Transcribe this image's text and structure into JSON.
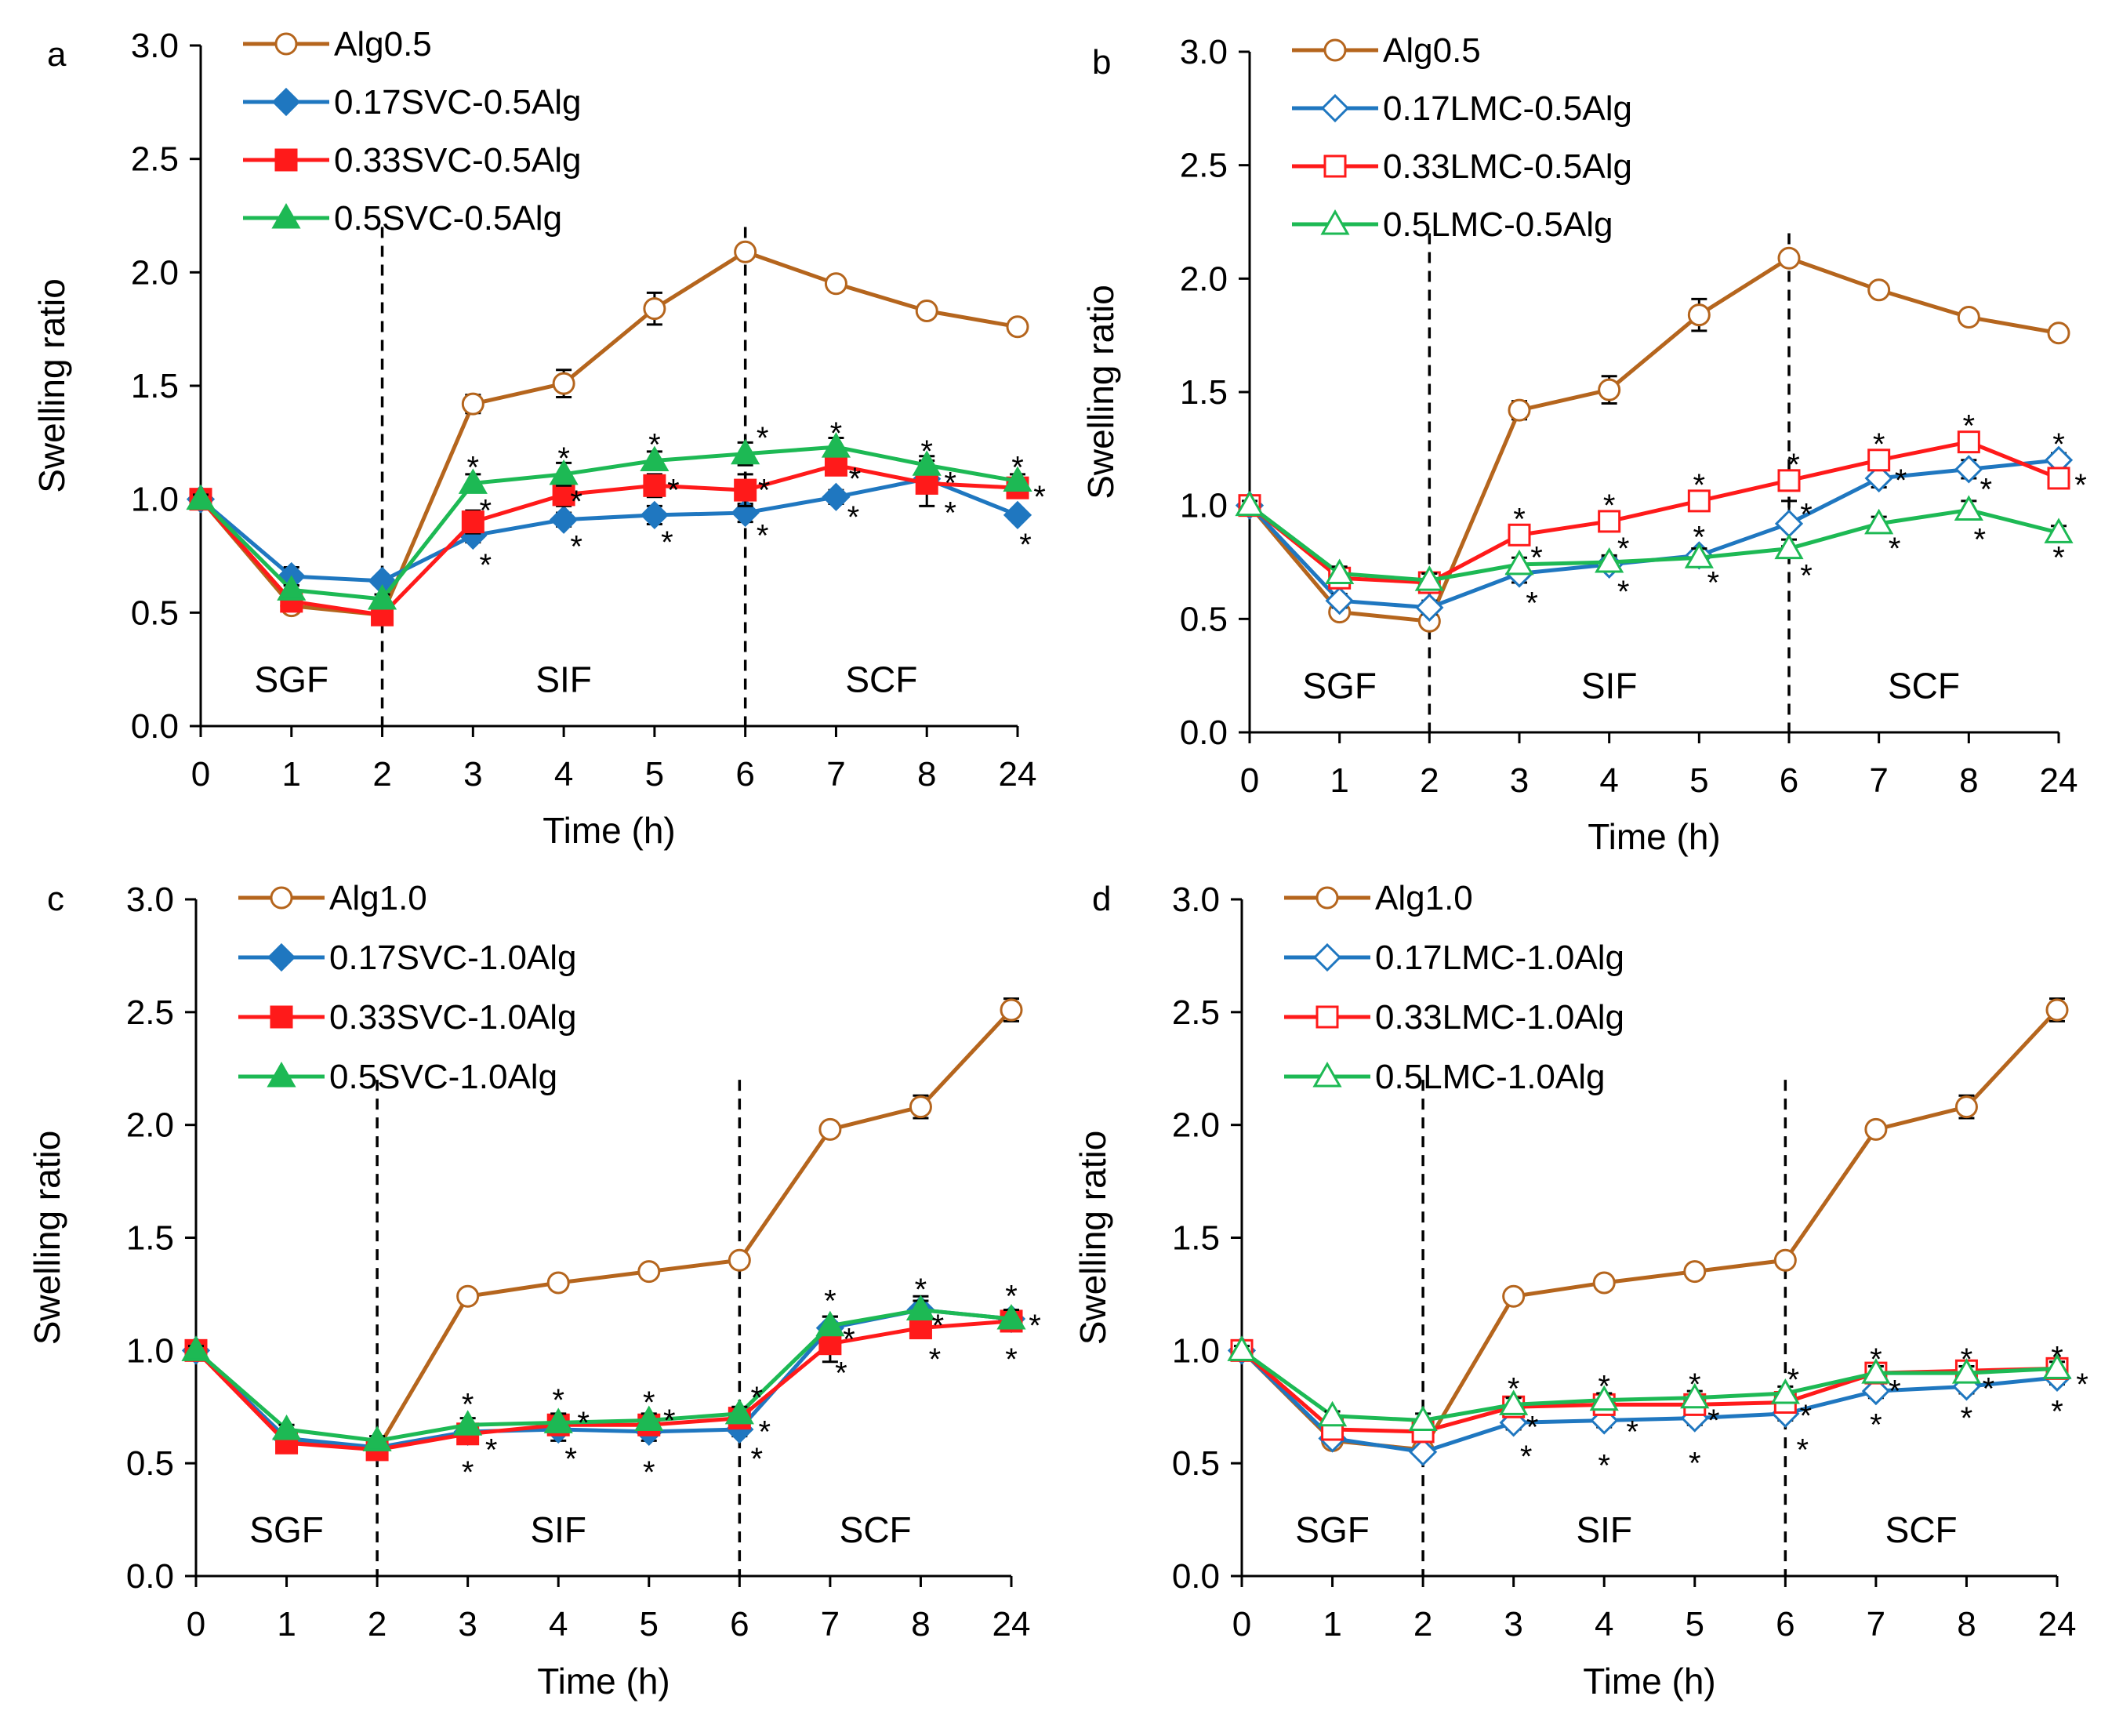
{
  "chart_data": [
    {
      "panel_label": "a",
      "type": "line",
      "title": "",
      "xlabel": "Time (h)",
      "ylabel": "Swelling ratio",
      "categories": [
        "0",
        "1",
        "2",
        "3",
        "4",
        "5",
        "6",
        "7",
        "8",
        "24"
      ],
      "ylim": [
        0,
        3
      ],
      "yticks": [
        "0.0",
        "0.5",
        "1.0",
        "1.5",
        "2.0",
        "2.5",
        "3.0"
      ],
      "phase_labels": [
        "SGF",
        "SIF",
        "SCF"
      ],
      "phase_dividers": [
        2,
        6
      ],
      "series": [
        {
          "name": "Alg0.5",
          "color": "#B5651D",
          "marker": "circle",
          "filled": false,
          "values": [
            1.0,
            0.53,
            0.49,
            1.42,
            1.51,
            1.84,
            2.09,
            1.95,
            1.83,
            1.76
          ],
          "errors": [
            0.02,
            0.02,
            0.02,
            0.04,
            0.06,
            0.07,
            0.02,
            0.02,
            0.02,
            0.01
          ]
        },
        {
          "name": "0.17SVC-0.5Alg",
          "color": "#1F77C0",
          "marker": "diamond",
          "filled": true,
          "values": [
            1.0,
            0.66,
            0.64,
            0.84,
            0.91,
            0.93,
            0.94,
            1.01,
            1.09,
            0.93
          ],
          "errors": [
            0.02,
            0.04,
            0.02,
            0.03,
            0.03,
            0.04,
            0.04,
            0.03,
            0.04,
            0.02
          ]
        },
        {
          "name": "0.33SVC-0.5Alg",
          "color": "#FF1A1A",
          "marker": "square",
          "filled": true,
          "values": [
            1.0,
            0.55,
            0.49,
            0.9,
            1.02,
            1.06,
            1.04,
            1.15,
            1.07,
            1.05
          ],
          "errors": [
            0.02,
            0.02,
            0.02,
            0.05,
            0.05,
            0.05,
            0.07,
            0.03,
            0.1,
            0.03
          ]
        },
        {
          "name": "0.5SVC-0.5Alg",
          "color": "#1DB954",
          "marker": "triangle",
          "filled": true,
          "values": [
            1.0,
            0.6,
            0.56,
            1.07,
            1.11,
            1.17,
            1.2,
            1.23,
            1.15,
            1.08
          ],
          "errors": [
            0.02,
            0.02,
            0.02,
            0.04,
            0.05,
            0.04,
            0.05,
            0.04,
            0.04,
            0.03
          ]
        }
      ],
      "asterisks": [
        {
          "xi": 3,
          "v": 1.17,
          "dx": 0
        },
        {
          "xi": 3,
          "v": 0.98,
          "dx": 16
        },
        {
          "xi": 3,
          "v": 0.74,
          "dx": 16
        },
        {
          "xi": 4,
          "v": 1.21,
          "dx": 0
        },
        {
          "xi": 4,
          "v": 1.02,
          "dx": 16
        },
        {
          "xi": 4,
          "v": 0.82,
          "dx": 16
        },
        {
          "xi": 5,
          "v": 1.27,
          "dx": 0
        },
        {
          "xi": 5,
          "v": 1.07,
          "dx": 24
        },
        {
          "xi": 5,
          "v": 0.84,
          "dx": 16
        },
        {
          "xi": 6,
          "v": 1.3,
          "dx": 22
        },
        {
          "xi": 6,
          "v": 1.07,
          "dx": 24
        },
        {
          "xi": 6,
          "v": 0.87,
          "dx": 22
        },
        {
          "xi": 7,
          "v": 1.32,
          "dx": 0
        },
        {
          "xi": 7,
          "v": 1.12,
          "dx": 24
        },
        {
          "xi": 7,
          "v": 0.95,
          "dx": 22
        },
        {
          "xi": 8,
          "v": 1.24,
          "dx": 0
        },
        {
          "xi": 8,
          "v": 1.1,
          "dx": 30
        },
        {
          "xi": 8,
          "v": 0.97,
          "dx": 30
        },
        {
          "xi": 9,
          "v": 1.17,
          "dx": 0
        },
        {
          "xi": 9,
          "v": 1.04,
          "dx": 28
        },
        {
          "xi": 9,
          "v": 0.83,
          "dx": 10
        }
      ]
    },
    {
      "panel_label": "b",
      "type": "line",
      "title": "",
      "xlabel": "Time (h)",
      "ylabel": "Swelling ratio",
      "categories": [
        "0",
        "1",
        "2",
        "3",
        "4",
        "5",
        "6",
        "7",
        "8",
        "24"
      ],
      "ylim": [
        0,
        3
      ],
      "yticks": [
        "0.0",
        "0.5",
        "1.0",
        "1.5",
        "2.0",
        "2.5",
        "3.0"
      ],
      "phase_labels": [
        "SGF",
        "SIF",
        "SCF"
      ],
      "phase_dividers": [
        2,
        6
      ],
      "series": [
        {
          "name": "Alg0.5",
          "color": "#B5651D",
          "marker": "circle",
          "filled": false,
          "values": [
            1.0,
            0.53,
            0.49,
            1.42,
            1.51,
            1.84,
            2.09,
            1.95,
            1.83,
            1.76
          ],
          "errors": [
            0.02,
            0.02,
            0.02,
            0.04,
            0.06,
            0.07,
            0.02,
            0.02,
            0.02,
            0.01
          ]
        },
        {
          "name": "0.17LMC-0.5Alg",
          "color": "#1F77C0",
          "marker": "diamond",
          "filled": false,
          "values": [
            1.0,
            0.58,
            0.55,
            0.7,
            0.74,
            0.78,
            0.92,
            1.12,
            1.16,
            1.2
          ],
          "errors": [
            0.02,
            0.03,
            0.03,
            0.04,
            0.03,
            0.03,
            0.1,
            0.04,
            0.04,
            0.03
          ]
        },
        {
          "name": "0.33LMC-0.5Alg",
          "color": "#FF1A1A",
          "marker": "square",
          "filled": false,
          "values": [
            1.0,
            0.68,
            0.66,
            0.87,
            0.93,
            1.02,
            1.11,
            1.2,
            1.28,
            1.12
          ],
          "errors": [
            0.02,
            0.03,
            0.03,
            0.03,
            0.03,
            0.03,
            0.03,
            0.04,
            0.04,
            0.03
          ]
        },
        {
          "name": "0.5LMC-0.5Alg",
          "color": "#1DB954",
          "marker": "triangle",
          "filled": false,
          "values": [
            1.0,
            0.7,
            0.67,
            0.74,
            0.75,
            0.77,
            0.81,
            0.92,
            0.98,
            0.88
          ],
          "errors": [
            0.02,
            0.03,
            0.03,
            0.03,
            0.03,
            0.04,
            0.04,
            0.03,
            0.04,
            0.03
          ]
        }
      ],
      "asterisks": [
        {
          "xi": 3,
          "v": 0.97,
          "dx": 0
        },
        {
          "xi": 3,
          "v": 0.8,
          "dx": 22
        },
        {
          "xi": 3,
          "v": 0.6,
          "dx": 16
        },
        {
          "xi": 4,
          "v": 1.03,
          "dx": 0
        },
        {
          "xi": 4,
          "v": 0.84,
          "dx": 18
        },
        {
          "xi": 4,
          "v": 0.65,
          "dx": 18
        },
        {
          "xi": 5,
          "v": 1.12,
          "dx": 0
        },
        {
          "xi": 5,
          "v": 0.89,
          "dx": 0
        },
        {
          "xi": 5,
          "v": 0.69,
          "dx": 18
        },
        {
          "xi": 6,
          "v": 1.21,
          "dx": 6
        },
        {
          "xi": 6,
          "v": 0.99,
          "dx": 22
        },
        {
          "xi": 6,
          "v": 0.72,
          "dx": 22
        },
        {
          "xi": 7,
          "v": 1.3,
          "dx": 0
        },
        {
          "xi": 7,
          "v": 1.14,
          "dx": 28
        },
        {
          "xi": 7,
          "v": 0.84,
          "dx": 20
        },
        {
          "xi": 8,
          "v": 1.38,
          "dx": 0
        },
        {
          "xi": 8,
          "v": 1.1,
          "dx": 22
        },
        {
          "xi": 8,
          "v": 0.88,
          "dx": 14
        },
        {
          "xi": 9,
          "v": 1.3,
          "dx": 0
        },
        {
          "xi": 9,
          "v": 1.12,
          "dx": 28
        },
        {
          "xi": 9,
          "v": 0.8,
          "dx": 0
        }
      ]
    },
    {
      "panel_label": "c",
      "type": "line",
      "title": "",
      "xlabel": "Time (h)",
      "ylabel": "Swelling ratio",
      "categories": [
        "0",
        "1",
        "2",
        "3",
        "4",
        "5",
        "6",
        "7",
        "8",
        "24"
      ],
      "ylim": [
        0,
        3
      ],
      "yticks": [
        "0.0",
        "0.5",
        "1.0",
        "1.5",
        "2.0",
        "2.5",
        "3.0"
      ],
      "phase_labels": [
        "SGF",
        "SIF",
        "SCF"
      ],
      "phase_dividers": [
        2,
        6
      ],
      "series": [
        {
          "name": "Alg1.0",
          "color": "#B5651D",
          "marker": "circle",
          "filled": false,
          "values": [
            1.0,
            0.6,
            0.56,
            1.24,
            1.3,
            1.35,
            1.4,
            1.98,
            2.08,
            2.51
          ],
          "errors": [
            0.02,
            0.02,
            0.02,
            0.03,
            0.02,
            0.02,
            0.03,
            0.03,
            0.05,
            0.05
          ]
        },
        {
          "name": "0.17SVC-1.0Alg",
          "color": "#1F77C0",
          "marker": "diamond",
          "filled": true,
          "values": [
            1.0,
            0.61,
            0.57,
            0.64,
            0.65,
            0.64,
            0.65,
            1.1,
            1.18,
            1.14
          ],
          "errors": [
            0.02,
            0.02,
            0.02,
            0.03,
            0.05,
            0.04,
            0.03,
            0.05,
            0.06,
            0.04
          ]
        },
        {
          "name": "0.33SVC-1.0Alg",
          "color": "#FF1A1A",
          "marker": "square",
          "filled": true,
          "values": [
            1.0,
            0.59,
            0.56,
            0.63,
            0.67,
            0.67,
            0.7,
            1.03,
            1.1,
            1.13
          ],
          "errors": [
            0.02,
            0.02,
            0.02,
            0.03,
            0.03,
            0.03,
            0.03,
            0.08,
            0.03,
            0.04
          ]
        },
        {
          "name": "0.5SVC-1.0Alg",
          "color": "#1DB954",
          "marker": "triangle",
          "filled": true,
          "values": [
            1.0,
            0.65,
            0.6,
            0.67,
            0.68,
            0.69,
            0.72,
            1.11,
            1.18,
            1.14
          ],
          "errors": [
            0.02,
            0.02,
            0.02,
            0.03,
            0.04,
            0.03,
            0.03,
            0.04,
            0.04,
            0.04
          ]
        }
      ],
      "asterisks": [
        {
          "xi": 3,
          "v": 0.79,
          "dx": 0
        },
        {
          "xi": 3,
          "v": 0.59,
          "dx": 30
        },
        {
          "xi": 3,
          "v": 0.49,
          "dx": 0
        },
        {
          "xi": 4,
          "v": 0.81,
          "dx": 0
        },
        {
          "xi": 4,
          "v": 0.71,
          "dx": 32
        },
        {
          "xi": 4,
          "v": 0.55,
          "dx": 16
        },
        {
          "xi": 5,
          "v": 0.8,
          "dx": 0
        },
        {
          "xi": 5,
          "v": 0.72,
          "dx": 26
        },
        {
          "xi": 5,
          "v": 0.49,
          "dx": 0
        },
        {
          "xi": 6,
          "v": 0.82,
          "dx": 22
        },
        {
          "xi": 6,
          "v": 0.67,
          "dx": 32
        },
        {
          "xi": 6,
          "v": 0.55,
          "dx": 22
        },
        {
          "xi": 7,
          "v": 1.25,
          "dx": 0
        },
        {
          "xi": 7,
          "v": 1.08,
          "dx": 24
        },
        {
          "xi": 7,
          "v": 0.93,
          "dx": 14
        },
        {
          "xi": 8,
          "v": 1.3,
          "dx": 0
        },
        {
          "xi": 8,
          "v": 1.14,
          "dx": 22
        },
        {
          "xi": 8,
          "v": 0.99,
          "dx": 18
        },
        {
          "xi": 9,
          "v": 1.27,
          "dx": 0
        },
        {
          "xi": 9,
          "v": 1.14,
          "dx": 30
        },
        {
          "xi": 9,
          "v": 0.99,
          "dx": 0
        }
      ]
    },
    {
      "panel_label": "d",
      "type": "line",
      "title": "",
      "xlabel": "Time (h)",
      "ylabel": "Swelling ratio",
      "categories": [
        "0",
        "1",
        "2",
        "3",
        "4",
        "5",
        "6",
        "7",
        "8",
        "24"
      ],
      "ylim": [
        0,
        3
      ],
      "yticks": [
        "0.0",
        "0.5",
        "1.0",
        "1.5",
        "2.0",
        "2.5",
        "3.0"
      ],
      "phase_labels": [
        "SGF",
        "SIF",
        "SCF"
      ],
      "phase_dividers": [
        2,
        6
      ],
      "series": [
        {
          "name": "Alg1.0",
          "color": "#B5651D",
          "marker": "circle",
          "filled": false,
          "values": [
            1.0,
            0.6,
            0.56,
            1.24,
            1.3,
            1.35,
            1.4,
            1.98,
            2.08,
            2.51
          ],
          "errors": [
            0.02,
            0.02,
            0.02,
            0.03,
            0.02,
            0.02,
            0.03,
            0.03,
            0.05,
            0.05
          ]
        },
        {
          "name": "0.17LMC-1.0Alg",
          "color": "#1F77C0",
          "marker": "diamond",
          "filled": false,
          "values": [
            1.0,
            0.61,
            0.55,
            0.68,
            0.69,
            0.7,
            0.72,
            0.82,
            0.84,
            0.88
          ],
          "errors": [
            0.02,
            0.02,
            0.02,
            0.03,
            0.03,
            0.03,
            0.03,
            0.03,
            0.03,
            0.03
          ]
        },
        {
          "name": "0.33LMC-1.0Alg",
          "color": "#FF1A1A",
          "marker": "square",
          "filled": false,
          "values": [
            1.0,
            0.65,
            0.64,
            0.75,
            0.76,
            0.76,
            0.77,
            0.9,
            0.91,
            0.92
          ],
          "errors": [
            0.02,
            0.02,
            0.03,
            0.03,
            0.03,
            0.03,
            0.03,
            0.03,
            0.03,
            0.03
          ]
        },
        {
          "name": "0.5LMC-1.0Alg",
          "color": "#1DB954",
          "marker": "triangle",
          "filled": false,
          "values": [
            1.0,
            0.71,
            0.69,
            0.76,
            0.78,
            0.79,
            0.81,
            0.9,
            0.9,
            0.92
          ],
          "errors": [
            0.02,
            0.02,
            0.03,
            0.03,
            0.03,
            0.03,
            0.03,
            0.03,
            0.03,
            0.03
          ]
        }
      ],
      "asterisks": [
        {
          "xi": 3,
          "v": 0.86,
          "dx": 0
        },
        {
          "xi": 3,
          "v": 0.69,
          "dx": 24
        },
        {
          "xi": 3,
          "v": 0.56,
          "dx": 16
        },
        {
          "xi": 4,
          "v": 0.87,
          "dx": 0
        },
        {
          "xi": 4,
          "v": 0.67,
          "dx": 36
        },
        {
          "xi": 4,
          "v": 0.52,
          "dx": 0
        },
        {
          "xi": 5,
          "v": 0.88,
          "dx": 0
        },
        {
          "xi": 5,
          "v": 0.72,
          "dx": 24
        },
        {
          "xi": 5,
          "v": 0.53,
          "dx": 0
        },
        {
          "xi": 6,
          "v": 0.9,
          "dx": 10
        },
        {
          "xi": 6,
          "v": 0.74,
          "dx": 26
        },
        {
          "xi": 6,
          "v": 0.59,
          "dx": 22
        },
        {
          "xi": 7,
          "v": 0.99,
          "dx": 0
        },
        {
          "xi": 7,
          "v": 0.85,
          "dx": 24
        },
        {
          "xi": 7,
          "v": 0.7,
          "dx": 0
        },
        {
          "xi": 8,
          "v": 0.99,
          "dx": 0
        },
        {
          "xi": 8,
          "v": 0.86,
          "dx": 28
        },
        {
          "xi": 8,
          "v": 0.73,
          "dx": 0
        },
        {
          "xi": 9,
          "v": 1.0,
          "dx": 0
        },
        {
          "xi": 9,
          "v": 0.88,
          "dx": 32
        },
        {
          "xi": 9,
          "v": 0.76,
          "dx": 0
        }
      ]
    }
  ]
}
